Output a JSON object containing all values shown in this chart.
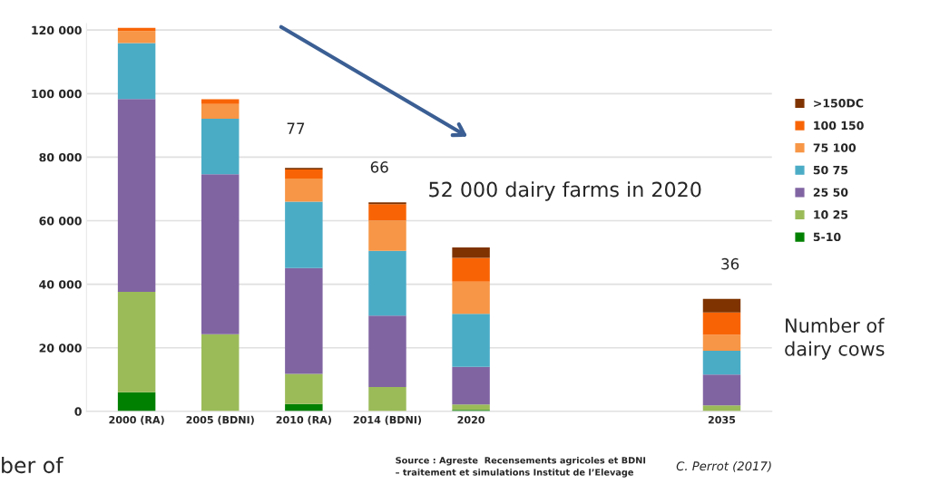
{
  "chart_data": {
    "type": "bar",
    "stacked": true,
    "categories": [
      "2000 (RA)",
      "2005 (BDNI)",
      "2010 (RA)",
      "2014 (BDNI)",
      "2020",
      null,
      null,
      "2035"
    ],
    "series": [
      {
        "name": "5-10",
        "color": "#008000",
        "values": [
          6000,
          0,
          2300,
          0,
          500,
          null,
          null,
          0
        ]
      },
      {
        "name": "10 25",
        "color": "#9bbb59",
        "values": [
          31600,
          24300,
          9500,
          7700,
          1700,
          null,
          null,
          1900
        ]
      },
      {
        "name": "25 50",
        "color": "#8064a2",
        "values": [
          60700,
          50300,
          33300,
          22400,
          11800,
          null,
          null,
          9700
        ]
      },
      {
        "name": "50 75",
        "color": "#4bacc6",
        "values": [
          17600,
          17500,
          20900,
          20400,
          16700,
          null,
          null,
          7500
        ]
      },
      {
        "name": "75 100",
        "color": "#f79646",
        "values": [
          3800,
          4600,
          7300,
          9600,
          10100,
          null,
          null,
          5000
        ]
      },
      {
        "name": "100 150",
        "color": "#f86405",
        "values": [
          1000,
          1500,
          2800,
          5100,
          7500,
          null,
          null,
          7000
        ]
      },
      {
        "name": ">150DC",
        "color": "#7f3300",
        "values": [
          0,
          0,
          500,
          600,
          3300,
          null,
          null,
          4300
        ]
      }
    ],
    "ylim": [
      0,
      122000
    ],
    "yticks": [
      {
        "value": 0,
        "label": "0"
      },
      {
        "value": 20000,
        "label": "20 000"
      },
      {
        "value": 40000,
        "label": "40 000"
      },
      {
        "value": 60000,
        "label": "60 000"
      },
      {
        "value": 80000,
        "label": "80 000"
      },
      {
        "value": 100000,
        "label": "100 000"
      },
      {
        "value": 120000,
        "label": "120 000"
      }
    ],
    "grid": "y",
    "legend": "right",
    "annotations": [
      "77",
      "66",
      "36",
      "52 000 dairy farms in 2020",
      "Number of\ndairy cows",
      "ber of",
      "Source : Agreste  Recensements agricoles et BDNI\n– traitement et simulations Institut de l’Elevage",
      "C. Perrot (2017)"
    ]
  }
}
